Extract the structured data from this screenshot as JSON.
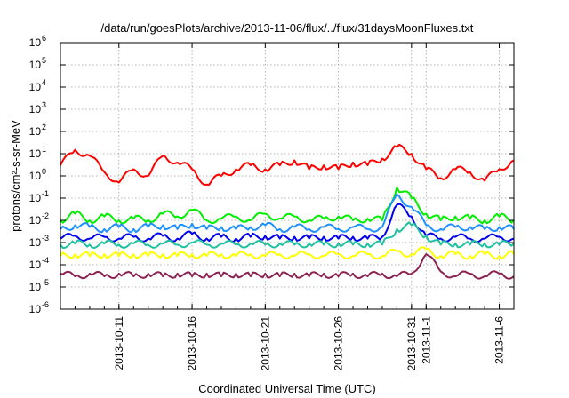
{
  "chart_data": {
    "type": "line",
    "title": "/data/run/goesPlots/archive/2013-11-06/flux/../flux/31daysMoonFluxes.txt",
    "xlabel": "Coordinated Universal Time (UTC)",
    "ylabel": "protons/cm²-s-sr-MeV",
    "yscale": "log",
    "ylim": [
      1e-06,
      1000000.0
    ],
    "xlim": [
      "2013-10-07",
      "2013-11-07"
    ],
    "grid": true,
    "legend": "none",
    "y_ticks": [
      {
        "value": 1e-06,
        "base": "10",
        "exp": "-6"
      },
      {
        "value": 1e-05,
        "base": "10",
        "exp": "-5"
      },
      {
        "value": 0.0001,
        "base": "10",
        "exp": "-4"
      },
      {
        "value": 0.001,
        "base": "10",
        "exp": "-3"
      },
      {
        "value": 0.01,
        "base": "10",
        "exp": "-2"
      },
      {
        "value": 0.1,
        "base": "10",
        "exp": "-1"
      },
      {
        "value": 1.0,
        "base": "10",
        "exp": "0"
      },
      {
        "value": 10.0,
        "base": "10",
        "exp": "1"
      },
      {
        "value": 100.0,
        "base": "10",
        "exp": "2"
      },
      {
        "value": 1000.0,
        "base": "10",
        "exp": "3"
      },
      {
        "value": 10000.0,
        "base": "10",
        "exp": "4"
      },
      {
        "value": 100000.0,
        "base": "10",
        "exp": "5"
      },
      {
        "value": 1000000.0,
        "base": "10",
        "exp": "6"
      }
    ],
    "x_ticks": [
      {
        "date": "2013-10-11",
        "label": "2013-10-11"
      },
      {
        "date": "2013-10-16",
        "label": "2013-10-16"
      },
      {
        "date": "2013-10-21",
        "label": "2013-10-21"
      },
      {
        "date": "2013-10-26",
        "label": "2013-10-26"
      },
      {
        "date": "2013-10-31",
        "label": "2013-10-31"
      },
      {
        "date": "2013-11-01",
        "label": "2013-11-1"
      },
      {
        "date": "2013-11-06",
        "label": "2013-11-6"
      }
    ],
    "series": [
      {
        "color": "#ff0000",
        "x": [
          "2013-10-07",
          "2013-10-08",
          "2013-10-09",
          "2013-10-10",
          "2013-10-11",
          "2013-10-12",
          "2013-10-13",
          "2013-10-14",
          "2013-10-15",
          "2013-10-16",
          "2013-10-17",
          "2013-10-18",
          "2013-10-19",
          "2013-10-20",
          "2013-10-21",
          "2013-10-22",
          "2013-10-23",
          "2013-10-24",
          "2013-10-25",
          "2013-10-26",
          "2013-10-27",
          "2013-10-28",
          "2013-10-29",
          "2013-10-30",
          "2013-10-31",
          "2013-11-01",
          "2013-11-02",
          "2013-11-03",
          "2013-11-04",
          "2013-11-05",
          "2013-11-06",
          "2013-11-07"
        ],
        "y": [
          3,
          15,
          8,
          1.5,
          0.5,
          2,
          1,
          8,
          4,
          2,
          0.4,
          1,
          2,
          3,
          2,
          3,
          5,
          2,
          3,
          2,
          4,
          3,
          6,
          20,
          10,
          2,
          0.8,
          2,
          1.5,
          0.6,
          2,
          5
        ]
      },
      {
        "color": "#00ee00",
        "x": [
          "2013-10-07",
          "2013-10-08",
          "2013-10-09",
          "2013-10-10",
          "2013-10-11",
          "2013-10-12",
          "2013-10-13",
          "2013-10-14",
          "2013-10-15",
          "2013-10-16",
          "2013-10-17",
          "2013-10-18",
          "2013-10-19",
          "2013-10-20",
          "2013-10-21",
          "2013-10-22",
          "2013-10-23",
          "2013-10-24",
          "2013-10-25",
          "2013-10-26",
          "2013-10-27",
          "2013-10-28",
          "2013-10-29",
          "2013-10-30",
          "2013-10-31",
          "2013-11-01",
          "2013-11-02",
          "2013-11-03",
          "2013-11-04",
          "2013-11-05",
          "2013-11-06",
          "2013-11-07"
        ],
        "y": [
          0.01,
          0.02,
          0.01,
          0.015,
          0.01,
          0.012,
          0.01,
          0.02,
          0.015,
          0.03,
          0.01,
          0.012,
          0.015,
          0.01,
          0.02,
          0.012,
          0.015,
          0.01,
          0.012,
          0.015,
          0.01,
          0.012,
          0.01,
          0.3,
          0.1,
          0.02,
          0.01,
          0.015,
          0.012,
          0.01,
          0.015,
          0.01
        ]
      },
      {
        "color": "#1e90ff",
        "x": [
          "2013-10-07",
          "2013-10-08",
          "2013-10-09",
          "2013-10-10",
          "2013-10-11",
          "2013-10-12",
          "2013-10-13",
          "2013-10-14",
          "2013-10-15",
          "2013-10-16",
          "2013-10-17",
          "2013-10-18",
          "2013-10-19",
          "2013-10-20",
          "2013-10-21",
          "2013-10-22",
          "2013-10-23",
          "2013-10-24",
          "2013-10-25",
          "2013-10-26",
          "2013-10-27",
          "2013-10-28",
          "2013-10-29",
          "2013-10-30",
          "2013-10-31",
          "2013-11-01",
          "2013-11-02",
          "2013-11-03",
          "2013-11-04",
          "2013-11-05",
          "2013-11-06",
          "2013-11-07"
        ],
        "y": [
          0.004,
          0.006,
          0.005,
          0.004,
          0.005,
          0.004,
          0.005,
          0.006,
          0.004,
          0.007,
          0.004,
          0.005,
          0.004,
          0.005,
          0.006,
          0.004,
          0.005,
          0.004,
          0.005,
          0.004,
          0.005,
          0.004,
          0.005,
          0.15,
          0.04,
          0.006,
          0.004,
          0.005,
          0.005,
          0.004,
          0.005,
          0.004
        ]
      },
      {
        "color": "#0000ee",
        "x": [
          "2013-10-07",
          "2013-10-08",
          "2013-10-09",
          "2013-10-10",
          "2013-10-11",
          "2013-10-12",
          "2013-10-13",
          "2013-10-14",
          "2013-10-15",
          "2013-10-16",
          "2013-10-17",
          "2013-10-18",
          "2013-10-19",
          "2013-10-20",
          "2013-10-21",
          "2013-10-22",
          "2013-10-23",
          "2013-10-24",
          "2013-10-25",
          "2013-10-26",
          "2013-10-27",
          "2013-10-28",
          "2013-10-29",
          "2013-10-30",
          "2013-10-31",
          "2013-11-01",
          "2013-11-02",
          "2013-11-03",
          "2013-11-04",
          "2013-11-05",
          "2013-11-06",
          "2013-11-07"
        ],
        "y": [
          0.0015,
          0.002,
          0.0015,
          0.0018,
          0.0015,
          0.0018,
          0.0015,
          0.002,
          0.0015,
          0.0025,
          0.0015,
          0.0018,
          0.0015,
          0.0018,
          0.002,
          0.0015,
          0.0018,
          0.0015,
          0.0018,
          0.0015,
          0.0018,
          0.0015,
          0.0018,
          0.05,
          0.015,
          0.002,
          0.0015,
          0.0018,
          0.0015,
          0.0015,
          0.0018,
          0.0015
        ]
      },
      {
        "color": "#20c0a0",
        "x": [
          "2013-10-07",
          "2013-10-08",
          "2013-10-09",
          "2013-10-10",
          "2013-10-11",
          "2013-10-12",
          "2013-10-13",
          "2013-10-14",
          "2013-10-15",
          "2013-10-16",
          "2013-10-17",
          "2013-10-18",
          "2013-10-19",
          "2013-10-20",
          "2013-10-21",
          "2013-10-22",
          "2013-10-23",
          "2013-10-24",
          "2013-10-25",
          "2013-10-26",
          "2013-10-27",
          "2013-10-28",
          "2013-10-29",
          "2013-10-30",
          "2013-10-31",
          "2013-11-01",
          "2013-11-02",
          "2013-11-03",
          "2013-11-04",
          "2013-11-05",
          "2013-11-06",
          "2013-11-07"
        ],
        "y": [
          0.0008,
          0.0009,
          0.0008,
          0.0009,
          0.0008,
          0.0009,
          0.0008,
          0.0009,
          0.0008,
          0.001,
          0.0008,
          0.0009,
          0.0008,
          0.0009,
          0.0008,
          0.0009,
          0.0008,
          0.0009,
          0.0008,
          0.0009,
          0.0008,
          0.0009,
          0.0008,
          0.004,
          0.006,
          0.002,
          0.0008,
          0.0009,
          0.0008,
          0.0009,
          0.0008,
          0.0009
        ]
      },
      {
        "color": "#ffff00",
        "x": [
          "2013-10-07",
          "2013-10-08",
          "2013-10-09",
          "2013-10-10",
          "2013-10-11",
          "2013-10-12",
          "2013-10-13",
          "2013-10-14",
          "2013-10-15",
          "2013-10-16",
          "2013-10-17",
          "2013-10-18",
          "2013-10-19",
          "2013-10-20",
          "2013-10-21",
          "2013-10-22",
          "2013-10-23",
          "2013-10-24",
          "2013-10-25",
          "2013-10-26",
          "2013-10-27",
          "2013-10-28",
          "2013-10-29",
          "2013-10-30",
          "2013-10-31",
          "2013-11-01",
          "2013-11-02",
          "2013-11-03",
          "2013-11-04",
          "2013-11-05",
          "2013-11-06",
          "2013-11-07"
        ],
        "y": [
          0.00025,
          0.0003,
          0.00025,
          0.0003,
          0.00025,
          0.0003,
          0.00025,
          0.0003,
          0.00025,
          0.0003,
          0.00025,
          0.0003,
          0.00025,
          0.0003,
          0.00025,
          0.0003,
          0.00025,
          0.0003,
          0.00025,
          0.0003,
          0.00025,
          0.0003,
          0.00025,
          0.0004,
          0.0003,
          0.0005,
          0.00025,
          0.0003,
          0.00025,
          0.0003,
          0.00025,
          0.0003
        ]
      },
      {
        "color": "#8b2252",
        "x": [
          "2013-10-07",
          "2013-10-08",
          "2013-10-09",
          "2013-10-10",
          "2013-10-11",
          "2013-10-12",
          "2013-10-13",
          "2013-10-14",
          "2013-10-15",
          "2013-10-16",
          "2013-10-17",
          "2013-10-18",
          "2013-10-19",
          "2013-10-20",
          "2013-10-21",
          "2013-10-22",
          "2013-10-23",
          "2013-10-24",
          "2013-10-25",
          "2013-10-26",
          "2013-10-27",
          "2013-10-28",
          "2013-10-29",
          "2013-10-30",
          "2013-10-31",
          "2013-11-01",
          "2013-11-02",
          "2013-11-03",
          "2013-11-04",
          "2013-11-05",
          "2013-11-06",
          "2013-11-07"
        ],
        "y": [
          4e-05,
          3e-05,
          4e-05,
          3e-05,
          4e-05,
          3e-05,
          4e-05,
          3e-05,
          4e-05,
          3e-05,
          4e-05,
          3e-05,
          4e-05,
          3e-05,
          4e-05,
          3e-05,
          4e-05,
          3e-05,
          4e-05,
          3e-05,
          4e-05,
          3e-05,
          4e-05,
          3e-05,
          4e-05,
          0.0003,
          5e-05,
          3e-05,
          4e-05,
          3e-05,
          4e-05,
          3e-05
        ]
      }
    ]
  }
}
